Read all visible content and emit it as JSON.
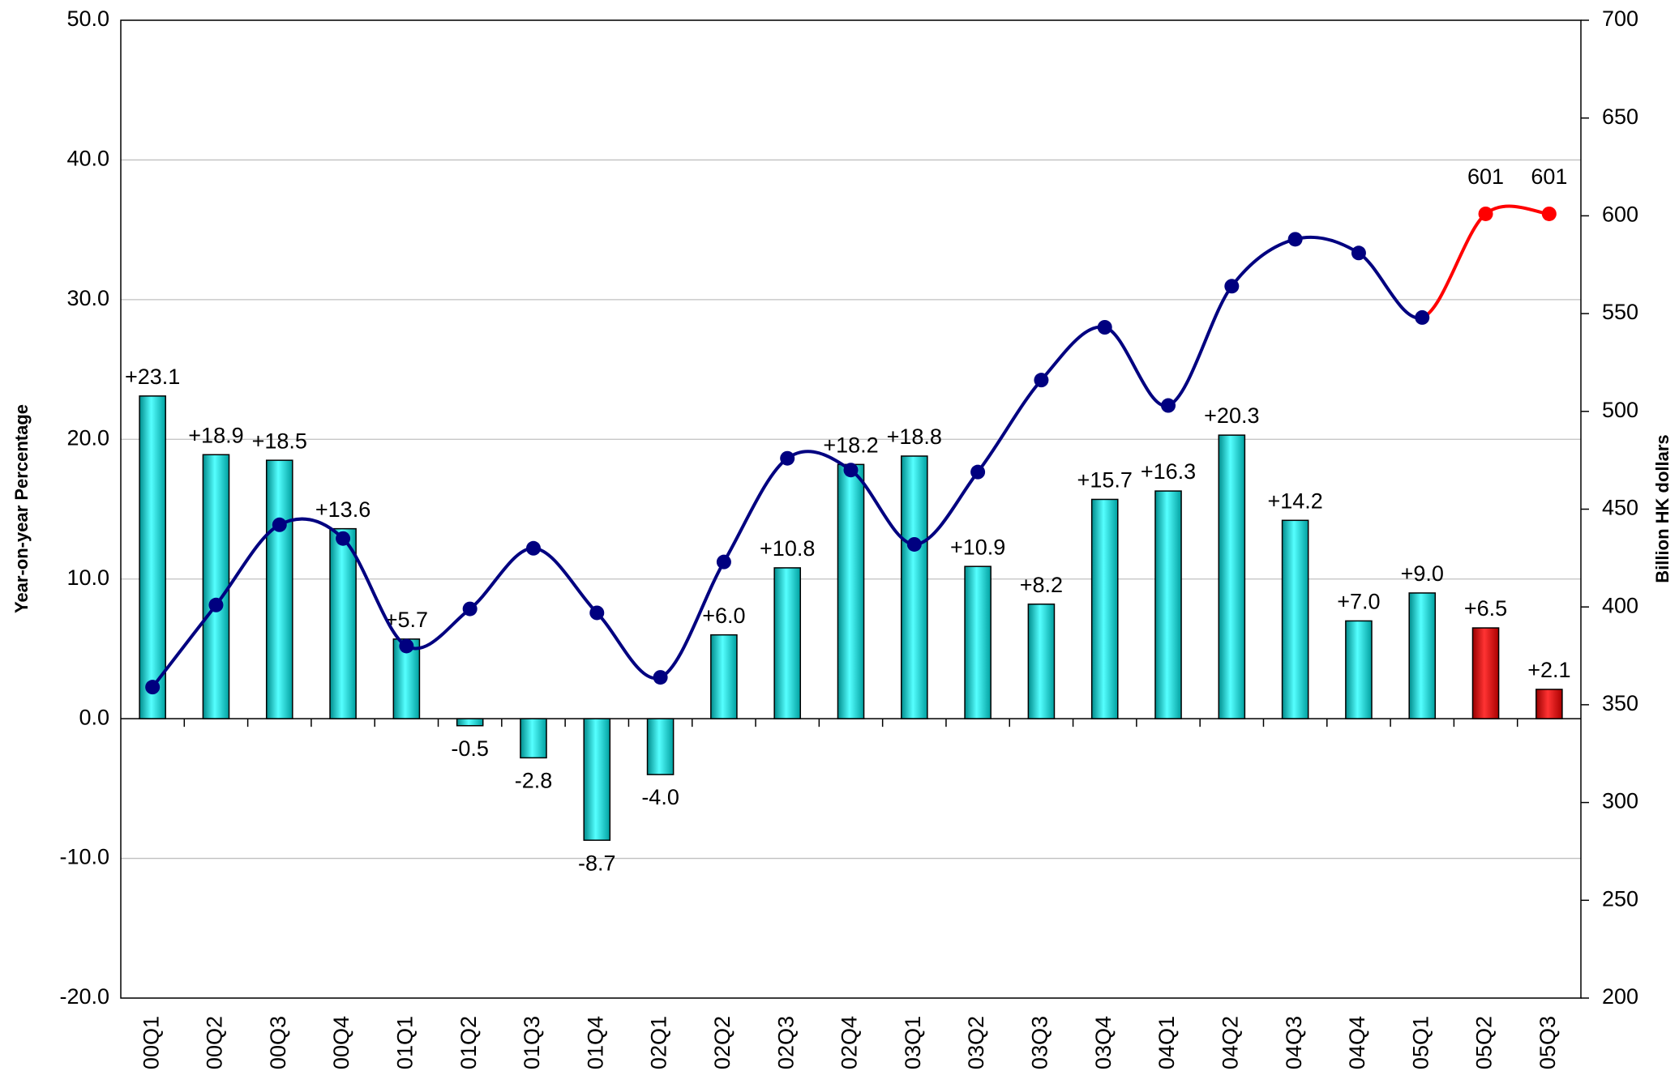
{
  "chart_data": {
    "type": "bar",
    "categories": [
      "00Q1",
      "00Q2",
      "00Q3",
      "00Q4",
      "01Q1",
      "01Q2",
      "01Q3",
      "01Q4",
      "02Q1",
      "02Q2",
      "02Q3",
      "02Q4",
      "03Q1",
      "03Q2",
      "03Q3",
      "03Q4",
      "04Q1",
      "04Q2",
      "04Q3",
      "04Q4",
      "05Q1",
      "05Q2",
      "05Q3"
    ],
    "series": [
      {
        "type": "bar",
        "values": [
          23.1,
          18.9,
          18.5,
          13.6,
          5.7,
          -0.5,
          -2.8,
          -8.7,
          -4.0,
          6.0,
          10.8,
          18.2,
          18.8,
          10.9,
          8.2,
          15.7,
          16.3,
          20.3,
          14.2,
          7.0,
          9.0,
          6.5,
          2.1
        ],
        "value_labels": [
          "+23.1",
          "+18.9",
          "+18.5",
          "+13.6",
          "+5.7",
          "-0.5",
          "-2.8",
          "-8.7",
          "-4.0",
          "+6.0",
          "+10.8",
          "+18.2",
          "+18.8",
          "+10.9",
          "+8.2",
          "+15.7",
          "+16.3",
          "+20.3",
          "+14.2",
          "+7.0",
          "+9.0",
          "+6.5",
          "+2.1"
        ],
        "colors": [
          "#00e0e0",
          "#00e0e0",
          "#00e0e0",
          "#00e0e0",
          "#00e0e0",
          "#00e0e0",
          "#00e0e0",
          "#00e0e0",
          "#00e0e0",
          "#00e0e0",
          "#00e0e0",
          "#00e0e0",
          "#00e0e0",
          "#00e0e0",
          "#00e0e0",
          "#00e0e0",
          "#00e0e0",
          "#00e0e0",
          "#00e0e0",
          "#00e0e0",
          "#00e0e0",
          "#e00000",
          "#e00000"
        ]
      },
      {
        "type": "line",
        "axis": "y2",
        "values": [
          359,
          401,
          442,
          435,
          380,
          399,
          430,
          397,
          364,
          423,
          476,
          470,
          432,
          469,
          516,
          543,
          503,
          564,
          588,
          581,
          548,
          601,
          601
        ],
        "value_labels": [
          null,
          null,
          null,
          null,
          null,
          null,
          null,
          null,
          null,
          null,
          null,
          null,
          null,
          null,
          null,
          null,
          null,
          null,
          null,
          null,
          null,
          "601",
          "601"
        ],
        "colors": [
          "#000080",
          "#000080",
          "#000080",
          "#000080",
          "#000080",
          "#000080",
          "#000080",
          "#000080",
          "#000080",
          "#000080",
          "#000080",
          "#000080",
          "#000080",
          "#000080",
          "#000080",
          "#000080",
          "#000080",
          "#000080",
          "#000080",
          "#000080",
          "#000080",
          "#ff0000",
          "#ff0000"
        ]
      }
    ],
    "ylabel": "Year-on-year Percentage",
    "y2label": "Billion HK dollars",
    "ylim": [
      -20,
      50
    ],
    "yticks": [
      {
        "value": -20,
        "label": "-20.0"
      },
      {
        "value": -10,
        "label": "-10.0"
      },
      {
        "value": 0,
        "label": "0.0"
      },
      {
        "value": 10,
        "label": "10.0"
      },
      {
        "value": 20,
        "label": "20.0"
      },
      {
        "value": 30,
        "label": "30.0"
      },
      {
        "value": 40,
        "label": "40.0"
      },
      {
        "value": 50,
        "label": "50.0"
      }
    ],
    "y2lim": [
      200,
      700
    ],
    "y2ticks": [
      200,
      250,
      300,
      350,
      400,
      450,
      500,
      550,
      600,
      650,
      700
    ],
    "grid": true
  }
}
